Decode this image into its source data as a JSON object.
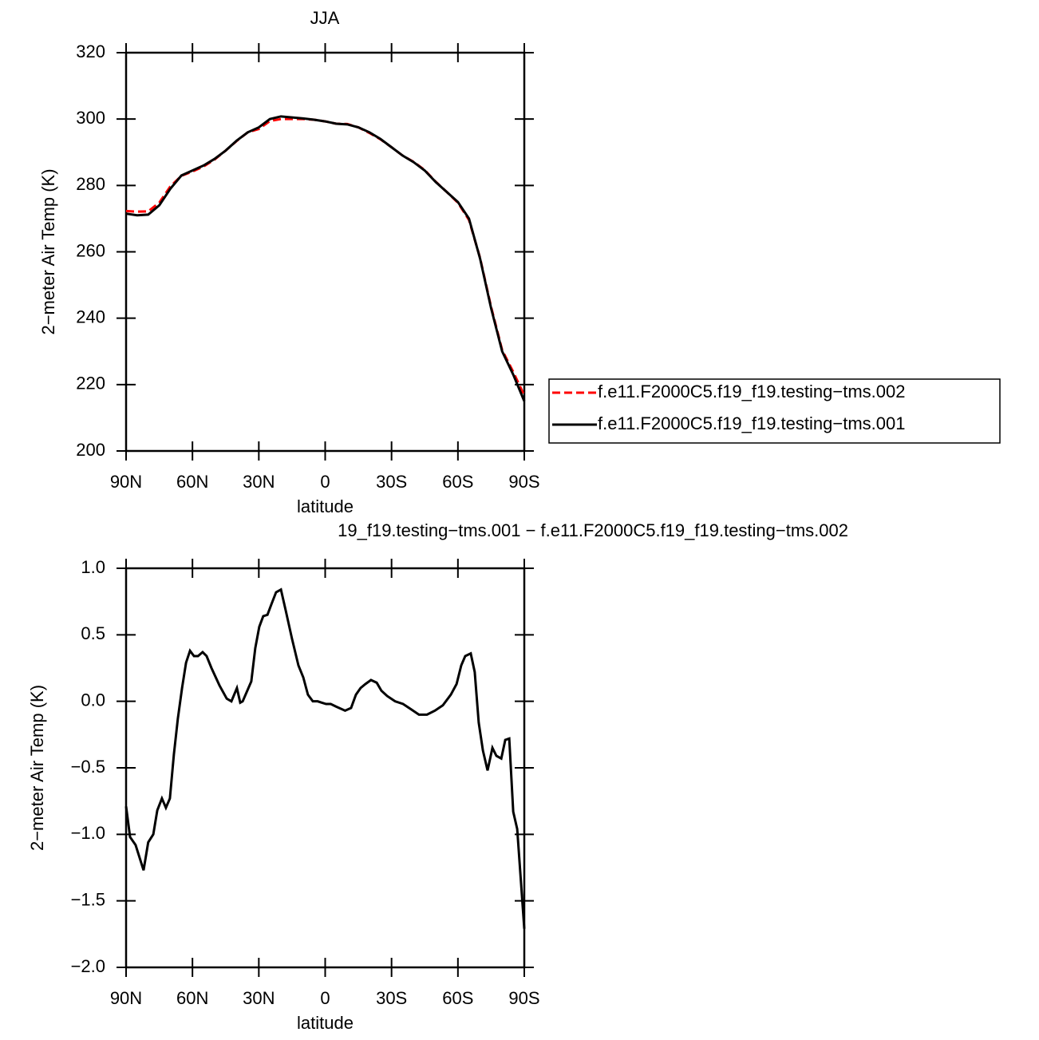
{
  "chart_data": [
    {
      "type": "line",
      "title": "JJA",
      "xlabel": "latitude",
      "ylabel": "2−meter Air Temp (K)",
      "x": [
        90,
        85,
        80,
        75,
        70,
        65,
        60,
        55,
        50,
        45,
        40,
        35,
        30,
        25,
        20,
        15,
        10,
        5,
        0,
        -5,
        -10,
        -15,
        -20,
        -25,
        -30,
        -35,
        -40,
        -45,
        -50,
        -55,
        -60,
        -65,
        -70,
        -75,
        -80,
        -85,
        -90
      ],
      "series": [
        {
          "name": "f.e11.F2000C5.f19_f19.testing−tms.002",
          "color": "#ff0000",
          "dash": "dashed",
          "values": [
            272.3,
            272.1,
            272.2,
            274.8,
            279.7,
            282.9,
            284.2,
            285.7,
            287.8,
            290.5,
            293.4,
            296,
            297,
            299.4,
            300,
            300,
            300,
            299.8,
            299.3,
            298.6,
            298.5,
            297.5,
            295.8,
            293.9,
            291.5,
            289,
            287.1,
            284.6,
            281.1,
            278,
            274.8,
            269.6,
            258.2,
            243.4,
            230.4,
            223.8,
            216.7
          ]
        },
        {
          "name": "f.e11.F2000C5.f19_f19.testing−tms.001",
          "color": "#000000",
          "dash": "solid",
          "values": [
            271.5,
            271,
            271.2,
            274,
            279,
            283,
            284.5,
            286,
            288,
            290.5,
            293.5,
            296,
            297.5,
            300,
            300.8,
            300.5,
            300.2,
            299.8,
            299.3,
            298.6,
            298.4,
            297.5,
            296,
            294,
            291.5,
            289,
            287,
            284.5,
            281,
            278,
            275,
            270,
            258,
            243,
            230,
            223,
            215
          ]
        }
      ],
      "xlim": [
        90,
        -90
      ],
      "xticks": [
        {
          "value": 90,
          "label": "90N"
        },
        {
          "value": 60,
          "label": "60N"
        },
        {
          "value": 30,
          "label": "30N"
        },
        0,
        {
          "value": -30,
          "label": "30S"
        },
        {
          "value": -60,
          "label": "60S"
        },
        {
          "value": -90,
          "label": "90S"
        }
      ],
      "ylim": [
        200,
        320
      ],
      "yticks": [
        200,
        220,
        240,
        260,
        280,
        300,
        320
      ],
      "legend": "right"
    },
    {
      "type": "line",
      "title": "19_f19.testing−tms.001 − f.e11.F2000C5.f19_f19.testing−tms.002",
      "xlabel": "latitude",
      "ylabel": "2−meter Air Temp (K)",
      "x": [
        90,
        88.2,
        85.7,
        82.1,
        80,
        77.7,
        75.9,
        73.8,
        72,
        70.2,
        68.4,
        66.6,
        64.7,
        62.9,
        61.1,
        59.3,
        57.5,
        55.4,
        53.6,
        51.4,
        47.8,
        44.5,
        42.4,
        39.9,
        38.4,
        37.3,
        33.4,
        31.6,
        29.8,
        28,
        26.1,
        24.3,
        22.2,
        20,
        17.8,
        15,
        12.1,
        9.9,
        7.8,
        5.6,
        3.4,
        1.6,
        -0.4,
        -2.5,
        -5,
        -9,
        -11.7,
        -13.9,
        -16,
        -18.2,
        -20.7,
        -23.3,
        -25.4,
        -28,
        -31.6,
        -35.2,
        -38.8,
        -42.4,
        -46,
        -49.6,
        -53.2,
        -56.8,
        -59.4,
        -61.5,
        -63.3,
        -65.8,
        -67.6,
        -69.4,
        -71.3,
        -73.4,
        -75.6,
        -77.4,
        -79.6,
        -81.4,
        -83.2,
        -85,
        -86.8,
        -90
      ],
      "series": [
        {
          "color": "#000000",
          "dash": "solid",
          "values": [
            -0.79,
            -1.02,
            -1.08,
            -1.27,
            -1.06,
            -1,
            -0.82,
            -0.73,
            -0.8,
            -0.73,
            -0.4,
            -0.13,
            0.1,
            0.29,
            0.38,
            0.34,
            0.34,
            0.37,
            0.34,
            0.25,
            0.12,
            0.02,
            0,
            0.1,
            -0.01,
            0,
            0.15,
            0.4,
            0.56,
            0.64,
            0.65,
            0.73,
            0.82,
            0.84,
            0.68,
            0.47,
            0.27,
            0.18,
            0.05,
            0,
            0,
            -0.01,
            -0.02,
            -0.02,
            -0.04,
            -0.07,
            -0.05,
            0.05,
            0.1,
            0.13,
            0.16,
            0.14,
            0.08,
            0.04,
            0,
            -0.02,
            -0.06,
            -0.1,
            -0.1,
            -0.07,
            -0.03,
            0.05,
            0.13,
            0.27,
            0.34,
            0.36,
            0.22,
            -0.16,
            -0.37,
            -0.52,
            -0.35,
            -0.41,
            -0.43,
            -0.29,
            -0.28,
            -0.83,
            -0.96,
            -1.71
          ]
        }
      ],
      "xlim": [
        90,
        -90
      ],
      "xticks": [
        {
          "value": 90,
          "label": "90N"
        },
        {
          "value": 60,
          "label": "60N"
        },
        {
          "value": 30,
          "label": "30N"
        },
        0,
        {
          "value": -30,
          "label": "30S"
        },
        {
          "value": -60,
          "label": "60S"
        },
        {
          "value": -90,
          "label": "90S"
        }
      ],
      "ylim": [
        -2,
        1
      ],
      "yticks": [
        {
          "value": -2,
          "label": "−2.0"
        },
        {
          "value": -1.5,
          "label": "−1.5"
        },
        {
          "value": -1,
          "label": "−1.0"
        },
        {
          "value": -0.5,
          "label": "−0.5"
        },
        {
          "value": 0,
          "label": "0.0"
        },
        0.5,
        {
          "value": 1,
          "label": "1.0"
        }
      ]
    }
  ]
}
